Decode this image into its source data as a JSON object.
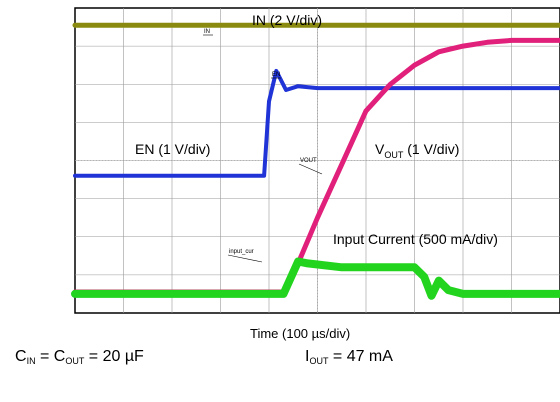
{
  "chart_data": {
    "type": "line",
    "title": "",
    "xlabel": "Time (100 µs/div)",
    "ylabel": "",
    "grid": true,
    "x_divisions": 10,
    "y_divisions": 8,
    "series": [
      {
        "name": "IN (2 V/div)",
        "probe_tag": "IN",
        "color": "#8a8a10",
        "x": [
          0,
          10
        ],
        "y": [
          7.55,
          7.55
        ]
      },
      {
        "name": "EN (1 V/div)",
        "probe_tag": "EN",
        "color": "#1f33d6",
        "x": [
          0,
          3.9,
          4.0,
          4.15,
          4.35,
          4.6,
          5.0,
          10
        ],
        "y": [
          3.6,
          3.6,
          5.55,
          6.35,
          5.85,
          5.95,
          5.9,
          5.9
        ]
      },
      {
        "name": "V_OUT (1 V/div)",
        "probe_tag": "VOUT",
        "color": "#e0207a",
        "x": [
          0,
          4.3,
          4.6,
          5.0,
          5.5,
          6.0,
          6.5,
          7.0,
          7.5,
          8.0,
          8.5,
          9.0,
          10
        ],
        "y": [
          0.55,
          0.55,
          1.3,
          2.5,
          3.9,
          5.3,
          6.0,
          6.5,
          6.85,
          7.0,
          7.1,
          7.15,
          7.15
        ]
      },
      {
        "name": "Input Current (500 mA/div)",
        "probe_tag": "input_cur",
        "color": "#22d41e",
        "x": [
          0,
          4.3,
          4.6,
          4.8,
          5.5,
          7.0,
          7.2,
          7.35,
          7.5,
          7.7,
          8.0,
          10
        ],
        "y": [
          0.5,
          0.5,
          1.35,
          1.3,
          1.2,
          1.2,
          0.95,
          0.45,
          0.85,
          0.6,
          0.5,
          0.5
        ]
      }
    ]
  },
  "labels": {
    "in": "IN (2 V/div)",
    "en": "EN (1 V/div)",
    "vout_main": "V",
    "vout_sub": "OUT",
    "vout_rest": " (1 V/div)",
    "input_current": "Input Current (500 mA/div)",
    "tag_in": "IN",
    "tag_en": "EN",
    "tag_vout": "VOUT",
    "tag_input_cur": "input_cur"
  },
  "footer": {
    "time_label": "Time (100 µs/div)",
    "cin_main": "C",
    "cin_sub": "IN",
    "cin_mid": " = C",
    "cout_sub": "OUT",
    "cap_value": " = 20 µF",
    "iout_main": "I",
    "iout_sub": "OUT",
    "iout_value": " = 47 mA"
  }
}
